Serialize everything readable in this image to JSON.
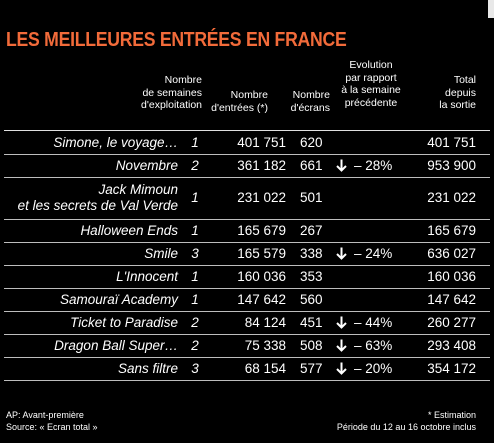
{
  "title": "LES MEILLEURES ENTRÉES EN FRANCE",
  "headers": {
    "weeks": [
      "Nombre",
      "de semaines",
      "d'exploitation"
    ],
    "entries": [
      "Nombre",
      "d'entrées (*)"
    ],
    "screens": [
      "Nombre",
      "d'écrans"
    ],
    "evolution": [
      "Evolution",
      "par rapport",
      "à la semaine",
      "précédente"
    ],
    "total": [
      "Total",
      "depuis",
      "la sortie"
    ]
  },
  "rows": [
    {
      "film": [
        "Simone, le voyage…"
      ],
      "weeks": "1",
      "entries": "401 751",
      "screens": "620",
      "evolution": "",
      "total": "401 751"
    },
    {
      "film": [
        "Novembre"
      ],
      "weeks": "2",
      "entries": "361 182",
      "screens": "661",
      "evolution": "– 28%",
      "total": "953 900"
    },
    {
      "film": [
        "Jack Mimoun",
        "et les secrets de Val Verde"
      ],
      "weeks": "1",
      "entries": "231 022",
      "screens": "501",
      "evolution": "",
      "total": "231 022"
    },
    {
      "film": [
        "Halloween Ends"
      ],
      "weeks": "1",
      "entries": "165 679",
      "screens": "267",
      "evolution": "",
      "total": "165 679"
    },
    {
      "film": [
        "Smile"
      ],
      "weeks": "3",
      "entries": "165 579",
      "screens": "338",
      "evolution": "– 24%",
      "total": "636 027"
    },
    {
      "film": [
        "L'Innocent"
      ],
      "weeks": "1",
      "entries": "160 036",
      "screens": "353",
      "evolution": "",
      "total": "160 036"
    },
    {
      "film": [
        "Samouraï Academy"
      ],
      "weeks": "1",
      "entries": "147 642",
      "screens": "560",
      "evolution": "",
      "total": "147 642"
    },
    {
      "film": [
        "Ticket to Paradise"
      ],
      "weeks": "2",
      "entries": "84 124",
      "screens": "451",
      "evolution": "– 44%",
      "total": "260 277"
    },
    {
      "film": [
        "Dragon Ball Super…"
      ],
      "weeks": "2",
      "entries": "75 338",
      "screens": "508",
      "evolution": "– 63%",
      "total": "293 408"
    },
    {
      "film": [
        "Sans filtre"
      ],
      "weeks": "3",
      "entries": "68 154",
      "screens": "577",
      "evolution": "– 20%",
      "total": "354 172"
    }
  ],
  "footer": {
    "left": [
      "AP: Avant-première",
      "Source: « Ecran total »"
    ],
    "right": [
      "* Estimation",
      "Période du 12 au 16 octobre inclus"
    ]
  },
  "colors": {
    "title": "#f26b3a",
    "background": "#000000",
    "text": "#ffffff"
  },
  "icons": {
    "evolution_arrow": "arrow-down-icon"
  }
}
